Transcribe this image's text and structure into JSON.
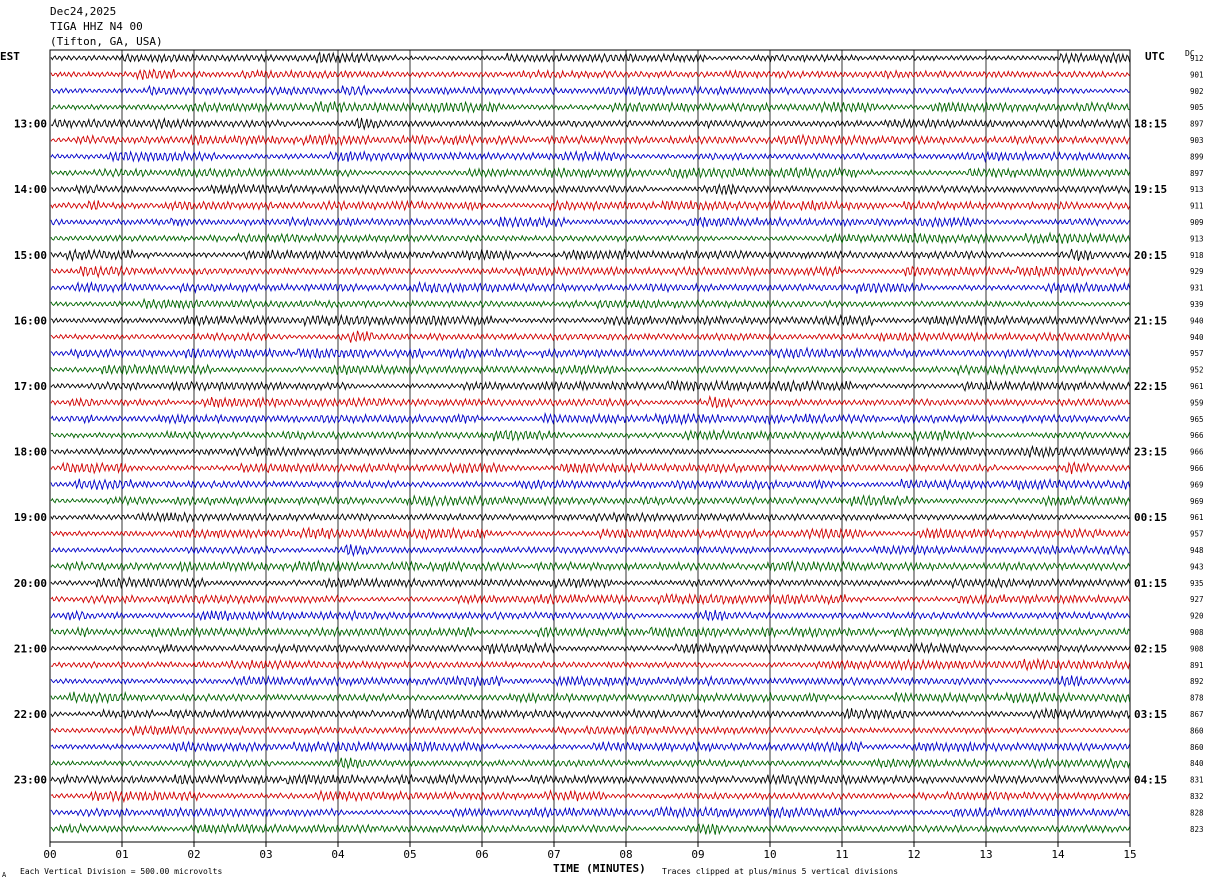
{
  "header": {
    "date": "Dec24,2025",
    "station": "TIGA HHZ N4 00",
    "location": "(Tifton, GA, USA)"
  },
  "left_timezone": "EST",
  "right_timezone": "UTC",
  "dc_label": "DC",
  "footer": {
    "scale_note": "Each Vertical Division =  500.00 microvolts",
    "clip_note": "Traces clipped at plus/minus 5 vertical divisions",
    "corner_mark": "A"
  },
  "colors": {
    "trace_cycle": [
      "#000000",
      "#d00000",
      "#0000c8",
      "#006400"
    ],
    "grid": "#000000"
  },
  "chart_data": {
    "type": "line",
    "description_type": "helicorder",
    "xlabel": "TIME (MINUTES)",
    "x_ticks": [
      "00",
      "01",
      "02",
      "03",
      "04",
      "05",
      "06",
      "07",
      "08",
      "09",
      "10",
      "11",
      "12",
      "13",
      "14",
      "15"
    ],
    "xlim": [
      0,
      15
    ],
    "left_hour_labels": [
      {
        "trace": 4,
        "label": "13:00"
      },
      {
        "trace": 8,
        "label": "14:00"
      },
      {
        "trace": 12,
        "label": "15:00"
      },
      {
        "trace": 16,
        "label": "16:00"
      },
      {
        "trace": 20,
        "label": "17:00"
      },
      {
        "trace": 24,
        "label": "18:00"
      },
      {
        "trace": 28,
        "label": "19:00"
      },
      {
        "trace": 32,
        "label": "20:00"
      },
      {
        "trace": 36,
        "label": "21:00"
      },
      {
        "trace": 40,
        "label": "22:00"
      },
      {
        "trace": 44,
        "label": "23:00"
      }
    ],
    "right_hour_labels": [
      {
        "trace": 4,
        "label": "18:15"
      },
      {
        "trace": 8,
        "label": "19:15"
      },
      {
        "trace": 12,
        "label": "20:15"
      },
      {
        "trace": 16,
        "label": "21:15"
      },
      {
        "trace": 20,
        "label": "22:15"
      },
      {
        "trace": 24,
        "label": "23:15"
      },
      {
        "trace": 28,
        "label": "00:15"
      },
      {
        "trace": 32,
        "label": "01:15"
      },
      {
        "trace": 36,
        "label": "02:15"
      },
      {
        "trace": 40,
        "label": "03:15"
      },
      {
        "trace": 44,
        "label": "04:15"
      }
    ],
    "dc_values": [
      "912",
      "901",
      "902",
      "905",
      "897",
      "903",
      "899",
      "897",
      "913",
      "911",
      "909",
      "913",
      "918",
      "929",
      "931",
      "939",
      "940",
      "940",
      "957",
      "952",
      "961",
      "959",
      "965",
      "966",
      "966",
      "966",
      "969",
      "969",
      "961",
      "957",
      "948",
      "943",
      "935",
      "927",
      "920",
      "908",
      "908",
      "891",
      "892",
      "878",
      "867",
      "860",
      "860",
      "840",
      "831",
      "832",
      "828",
      "823"
    ]
  }
}
